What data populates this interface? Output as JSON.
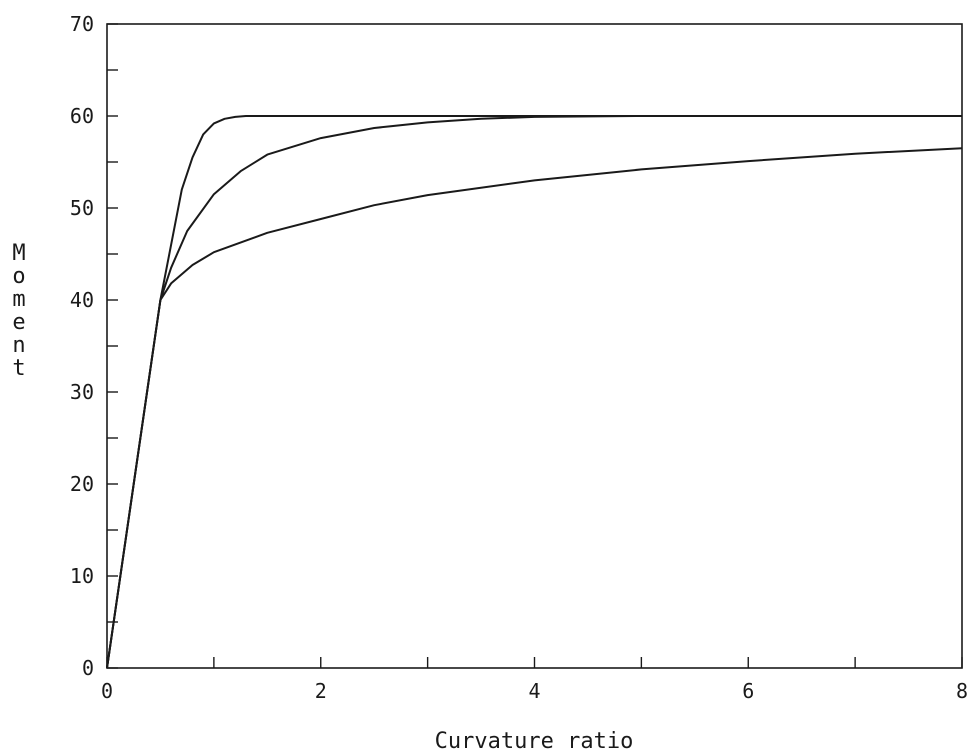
{
  "chart_data": {
    "type": "line",
    "title": "",
    "xlabel": "Curvature ratio",
    "ylabel": "Moment",
    "xlim": [
      0,
      8
    ],
    "ylim": [
      0,
      70
    ],
    "x_ticks": [
      0,
      2,
      4,
      6,
      8
    ],
    "x_minor_ticks": [
      1,
      3,
      5,
      7
    ],
    "y_ticks": [
      0,
      10,
      20,
      30,
      40,
      50,
      60,
      70
    ],
    "y_minor_ticks": [
      5,
      15,
      25,
      35,
      45,
      55,
      65
    ],
    "grid": false,
    "legend": "none",
    "line_color": "#1a1a1a",
    "series": [
      {
        "x": [
          0,
          0.5,
          0.6,
          0.7,
          0.8,
          0.9,
          1.0,
          1.1,
          1.2,
          1.3,
          2,
          4,
          6,
          8
        ],
        "y": [
          0,
          40,
          46,
          52,
          55.5,
          58,
          59.2,
          59.7,
          59.9,
          60,
          60,
          60,
          60,
          60
        ]
      },
      {
        "x": [
          0,
          0.5,
          0.6,
          0.75,
          1.0,
          1.25,
          1.5,
          2.0,
          2.5,
          3.0,
          3.5,
          4.0,
          5,
          6,
          8
        ],
        "y": [
          0,
          40,
          43.5,
          47.5,
          51.5,
          54,
          55.8,
          57.6,
          58.7,
          59.3,
          59.7,
          59.9,
          60,
          60,
          60
        ]
      },
      {
        "x": [
          0,
          0.5,
          0.6,
          0.8,
          1.0,
          1.5,
          2,
          2.5,
          3,
          4,
          5,
          6,
          7,
          8
        ],
        "y": [
          0,
          40,
          41.8,
          43.8,
          45.2,
          47.3,
          48.8,
          50.3,
          51.4,
          53,
          54.2,
          55.1,
          55.9,
          56.5
        ]
      }
    ]
  }
}
